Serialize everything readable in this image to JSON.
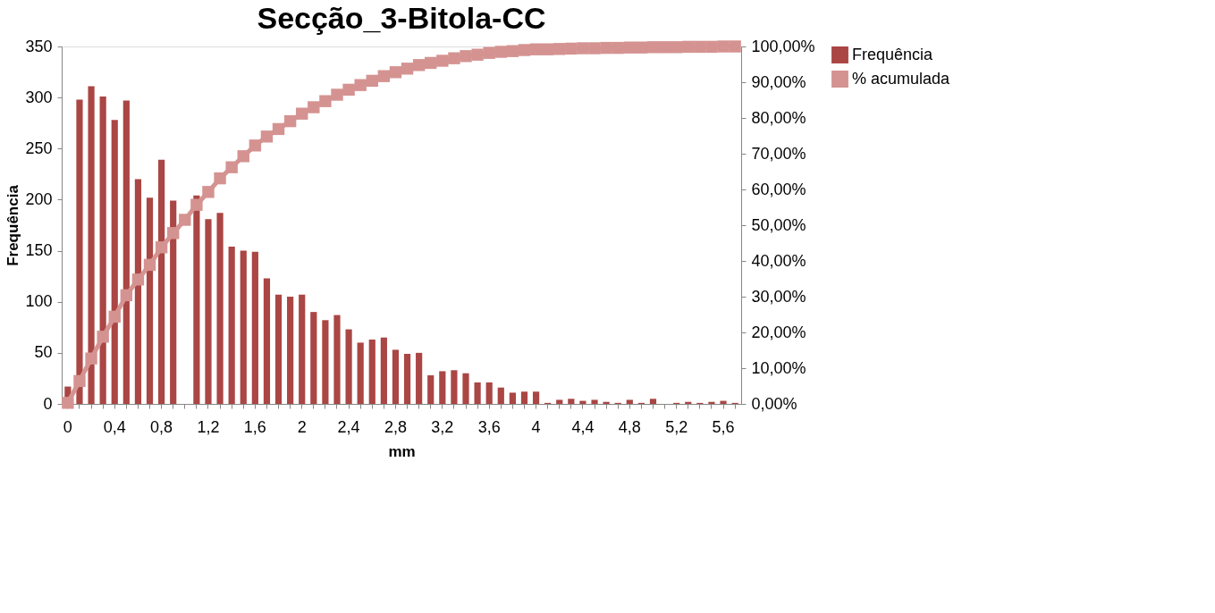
{
  "chart_data": {
    "type": "bar",
    "title": "Secção_3-Bitola-CC",
    "xlabel": "mm",
    "ylabel": "Frequência",
    "categories": [
      "0",
      null,
      null,
      null,
      "0,4",
      null,
      null,
      null,
      "0,8",
      null,
      null,
      null,
      "1,2",
      null,
      null,
      null,
      "1,6",
      null,
      null,
      null,
      "2",
      null,
      null,
      null,
      "2,4",
      null,
      null,
      null,
      "2,8",
      null,
      null,
      null,
      "3,2",
      null,
      null,
      null,
      "3,6",
      null,
      null,
      null,
      "4",
      null,
      null,
      null,
      "4,4",
      null,
      null,
      null,
      "4,8",
      null,
      null,
      null,
      "5,2",
      null,
      null,
      null,
      "5,6",
      null
    ],
    "series": [
      {
        "name": "Frequência",
        "color": "#aa4644",
        "values": [
          17,
          298,
          311,
          301,
          278,
          297,
          220,
          202,
          239,
          199,
          null,
          204,
          181,
          187,
          154,
          150,
          149,
          123,
          107,
          105,
          107,
          90,
          82,
          87,
          73,
          60,
          63,
          65,
          53,
          49,
          50,
          28,
          32,
          33,
          30,
          21,
          21,
          16,
          11,
          12,
          12,
          1,
          4,
          5,
          3,
          4,
          2,
          1,
          4,
          1,
          5,
          0,
          1,
          2,
          1,
          2,
          3,
          1
        ]
      },
      {
        "name": "% acumulada",
        "type": "line",
        "axis": "y2",
        "color": "#d49391",
        "marker": "square",
        "values": [
          0.3,
          6.4,
          12.7,
          18.8,
          24.4,
          30.4,
          34.8,
          38.9,
          43.8,
          47.8,
          51.5,
          55.7,
          59.3,
          63.1,
          66.2,
          69.3,
          72.3,
          74.8,
          76.9,
          79.1,
          81.2,
          83.0,
          84.7,
          86.5,
          87.9,
          89.2,
          90.4,
          91.7,
          92.8,
          93.8,
          94.8,
          95.4,
          96.0,
          96.7,
          97.3,
          97.7,
          98.2,
          98.5,
          98.7,
          99.0,
          99.2,
          99.2,
          99.3,
          99.4,
          99.5,
          99.5,
          99.6,
          99.6,
          99.7,
          99.7,
          99.8,
          99.8,
          99.8,
          99.9,
          99.9,
          99.9,
          100.0,
          100.0
        ]
      }
    ],
    "ylim": [
      0,
      350
    ],
    "yticks": [
      0,
      50,
      100,
      150,
      200,
      250,
      300,
      350
    ],
    "y2lim": [
      0,
      100
    ],
    "y2ticks": [
      {
        "value": 0,
        "label": "0,00%"
      },
      {
        "value": 10,
        "label": "10,00%"
      },
      {
        "value": 20,
        "label": "20,00%"
      },
      {
        "value": 30,
        "label": "30,00%"
      },
      {
        "value": 40,
        "label": "40,00%"
      },
      {
        "value": 50,
        "label": "50,00%"
      },
      {
        "value": 60,
        "label": "60,00%"
      },
      {
        "value": 70,
        "label": "70,00%"
      },
      {
        "value": 80,
        "label": "80,00%"
      },
      {
        "value": 90,
        "label": "90,00%"
      },
      {
        "value": 100,
        "label": "100,00%"
      }
    ],
    "grid": false,
    "legend": "right"
  }
}
